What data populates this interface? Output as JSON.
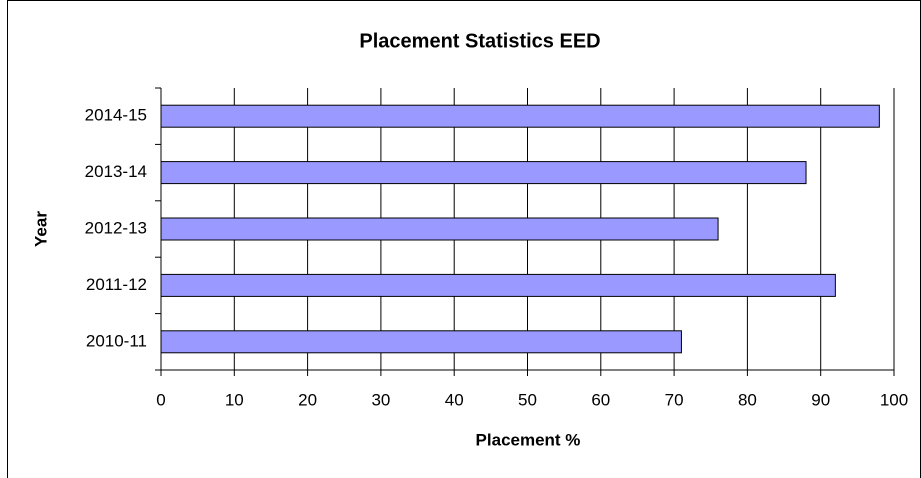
{
  "chart_data": {
    "type": "bar",
    "orientation": "horizontal",
    "title": "Placement Statistics EED",
    "x_label": "Placement %",
    "y_label": "Year",
    "categories": [
      "2010-11",
      "2011-12",
      "2012-13",
      "2013-14",
      "2014-15"
    ],
    "values": [
      71,
      92,
      76,
      88,
      98
    ],
    "color": "#9999ff",
    "xlim": [
      0,
      100
    ],
    "xticks": [
      0,
      10,
      20,
      30,
      40,
      50,
      60,
      70,
      80,
      90,
      100
    ],
    "grid": true
  }
}
